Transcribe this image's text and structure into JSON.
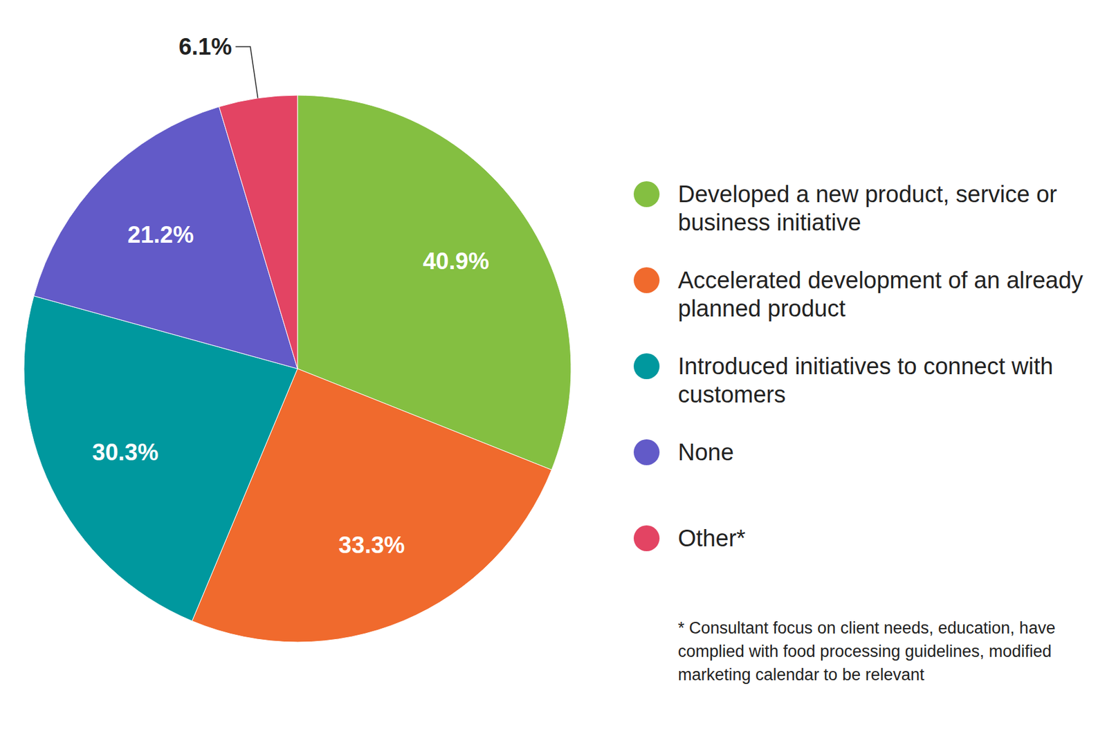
{
  "chart_data": {
    "type": "pie",
    "categories": [
      "Developed a new product, service or business initiative",
      "Accelerated development of an already planned product",
      "Introduced initiatives to connect with customers",
      "None",
      "Other*"
    ],
    "values": [
      40.9,
      33.3,
      30.3,
      21.2,
      6.1
    ],
    "value_labels": [
      "40.9%",
      "33.3%",
      "30.3%",
      "21.2%",
      "6.1%"
    ],
    "colors": [
      "#84bf41",
      "#f06a2d",
      "#00989e",
      "#625ac8",
      "#e34463"
    ],
    "data_labels": true,
    "legend": "right",
    "annotation": "* Consultant focus on client needs, education, have complied with food processing guidelines, modified marketing calendar to be relevant"
  }
}
